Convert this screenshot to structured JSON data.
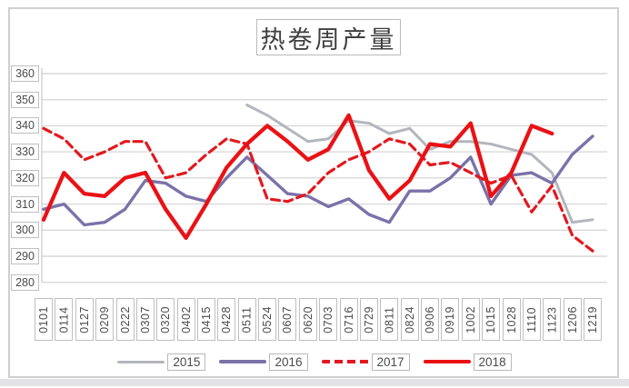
{
  "chart_data": {
    "type": "line",
    "title": "热卷周产量",
    "categories": [
      "0101",
      "0114",
      "0127",
      "0209",
      "0222",
      "0307",
      "0320",
      "0402",
      "0415",
      "0428",
      "0511",
      "0524",
      "0607",
      "0620",
      "0703",
      "0716",
      "0729",
      "0811",
      "0824",
      "0906",
      "0919",
      "1002",
      "1015",
      "1028",
      "1110",
      "1123",
      "1206",
      "1219"
    ],
    "series": [
      {
        "name": "2015",
        "color": "#b3b6bc",
        "style": "solid",
        "width": 3,
        "values": [
          null,
          null,
          null,
          null,
          null,
          null,
          null,
          null,
          null,
          null,
          348,
          344,
          339,
          334,
          335,
          342,
          341,
          337,
          339,
          331,
          334,
          334,
          333,
          331,
          329,
          322,
          303,
          304
        ]
      },
      {
        "name": "2016",
        "color": "#7b72a9",
        "style": "solid",
        "width": 3.4,
        "values": [
          308,
          310,
          302,
          303,
          308,
          319,
          318,
          313,
          311,
          320,
          328,
          321,
          314,
          313,
          309,
          312,
          306,
          303,
          315,
          315,
          320,
          328,
          310,
          321,
          322,
          318,
          329,
          336
        ]
      },
      {
        "name": "2017",
        "color": "#e2191f",
        "style": "dashed",
        "width": 3.2,
        "values": [
          339,
          335,
          327,
          330,
          334,
          334,
          320,
          322,
          329,
          335,
          333,
          312,
          311,
          314,
          322,
          327,
          330,
          335,
          333,
          325,
          326,
          322,
          318,
          321,
          307,
          317,
          298,
          292
        ]
      },
      {
        "name": "2018",
        "color": "#ea1115",
        "style": "solid",
        "width": 4.3,
        "values": [
          304,
          322,
          314,
          313,
          320,
          322,
          308,
          297,
          310,
          324,
          333,
          340,
          334,
          327,
          331,
          344,
          323,
          312,
          319,
          333,
          332,
          341,
          313,
          322,
          340,
          337,
          null,
          null
        ]
      }
    ],
    "y_ticks": [
      360,
      350,
      340,
      330,
      320,
      310,
      300,
      290,
      280
    ],
    "ylim": [
      280,
      360
    ],
    "xlabel": "",
    "ylabel": "",
    "grid": "horizontal",
    "legend_position": "bottom"
  },
  "style": {
    "grid_color": "#d9d9d9",
    "axis_color": "#bfbfbf",
    "label_box_border": "#bfbfbf",
    "tick_text_color": "#4a4a4a",
    "title_color": "#3f3f3f",
    "card_border": "#cfcfcf",
    "bottom_strip": "#e3e3e6"
  }
}
